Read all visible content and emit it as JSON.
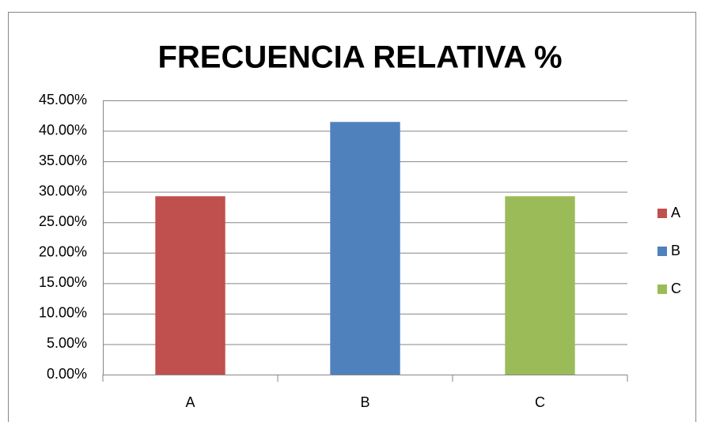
{
  "chart_data": {
    "type": "bar",
    "title": "FRECUENCIA RELATIVA %",
    "categories": [
      "A",
      "B",
      "C"
    ],
    "values": [
      29.27,
      41.46,
      29.27
    ],
    "colors": [
      "#c0504d",
      "#4f81bd",
      "#9bbb59"
    ],
    "ylim": [
      0,
      45
    ],
    "yticks": [
      {
        "value": 0,
        "label": "0.00%"
      },
      {
        "value": 5,
        "label": "5.00%"
      },
      {
        "value": 10,
        "label": "10.00%"
      },
      {
        "value": 15,
        "label": "15.00%"
      },
      {
        "value": 20,
        "label": "20.00%"
      },
      {
        "value": 25,
        "label": "25.00%"
      },
      {
        "value": 30,
        "label": "30.00%"
      },
      {
        "value": 35,
        "label": "35.00%"
      },
      {
        "value": 40,
        "label": "40.00%"
      },
      {
        "value": 45,
        "label": "45.00%"
      }
    ],
    "grid": true,
    "legend": "right"
  }
}
